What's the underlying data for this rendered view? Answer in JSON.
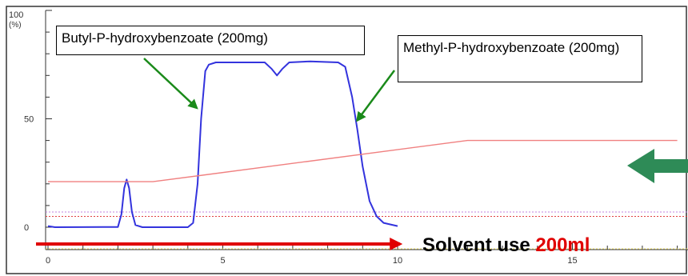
{
  "chart_data": {
    "type": "line",
    "xlim": [
      0,
      18
    ],
    "ylim": [
      0,
      100
    ],
    "x_ticks": [
      "0",
      "5",
      "10",
      "15"
    ],
    "y_ticks": [
      "0",
      "50",
      "100"
    ],
    "y_unit": "(%)",
    "series": [
      {
        "color": "#3333dd",
        "points": [
          [
            0,
            0.5
          ],
          [
            0.2,
            0
          ],
          [
            2.0,
            0.1
          ],
          [
            2.1,
            6
          ],
          [
            2.18,
            18
          ],
          [
            2.25,
            22
          ],
          [
            2.32,
            18
          ],
          [
            2.4,
            7
          ],
          [
            2.5,
            1
          ],
          [
            2.7,
            0
          ],
          [
            4.0,
            0
          ],
          [
            4.15,
            2
          ],
          [
            4.28,
            20
          ],
          [
            4.38,
            50
          ],
          [
            4.5,
            72
          ],
          [
            4.6,
            75
          ],
          [
            4.8,
            76
          ],
          [
            5.5,
            76
          ],
          [
            6.2,
            76
          ],
          [
            6.4,
            73
          ],
          [
            6.55,
            70
          ],
          [
            6.7,
            73
          ],
          [
            6.9,
            76
          ],
          [
            7.5,
            76.5
          ],
          [
            8.3,
            76
          ],
          [
            8.5,
            74
          ],
          [
            8.7,
            60
          ],
          [
            8.85,
            45
          ],
          [
            9.0,
            28
          ],
          [
            9.2,
            12
          ],
          [
            9.4,
            5
          ],
          [
            9.6,
            2
          ],
          [
            10.0,
            0.5
          ]
        ]
      },
      {
        "color": "#f08080",
        "points": [
          [
            0,
            21
          ],
          [
            3.0,
            21
          ],
          [
            12.0,
            40
          ],
          [
            18,
            40
          ]
        ]
      }
    ],
    "reference_lines": [
      {
        "y": 5,
        "color": "#e04040",
        "style": "dotted"
      },
      {
        "y": 7,
        "color": "#c080e0",
        "style": "dotted"
      },
      {
        "y": 0,
        "color": "#f0e060",
        "style": "dotted"
      }
    ],
    "annotations": [
      {
        "text": "Butyl-P-hydroxybenzoate (200mg)",
        "target": [
          4.3,
          55
        ]
      },
      {
        "text": "Methyl-P-hydroxybenzoate (200mg)",
        "target": [
          8.8,
          50
        ]
      }
    ]
  },
  "solvent": {
    "prefix": "Solvent use ",
    "amount": "200ml"
  },
  "colors": {
    "arrow_red": "#e00000",
    "arrow_green": "#2e8b57",
    "annotation_arrow": "#1a8a1a"
  }
}
